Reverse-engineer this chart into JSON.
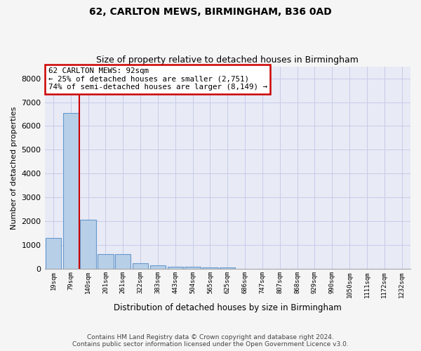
{
  "title1": "62, CARLTON MEWS, BIRMINGHAM, B36 0AD",
  "title2": "Size of property relative to detached houses in Birmingham",
  "xlabel": "Distribution of detached houses by size in Birmingham",
  "ylabel": "Number of detached properties",
  "categories": [
    "19sqm",
    "79sqm",
    "140sqm",
    "201sqm",
    "261sqm",
    "322sqm",
    "383sqm",
    "443sqm",
    "504sqm",
    "565sqm",
    "625sqm",
    "686sqm",
    "747sqm",
    "807sqm",
    "868sqm",
    "929sqm",
    "990sqm",
    "1050sqm",
    "1111sqm",
    "1172sqm",
    "1232sqm"
  ],
  "bar_heights": [
    1300,
    6550,
    2060,
    640,
    640,
    250,
    160,
    100,
    100,
    70,
    70,
    0,
    0,
    0,
    0,
    0,
    0,
    0,
    0,
    0,
    0
  ],
  "bar_color": "#b8cfe8",
  "bar_edge_color": "#6699cc",
  "ylim": [
    0,
    8500
  ],
  "yticks": [
    0,
    1000,
    2000,
    3000,
    4000,
    5000,
    6000,
    7000,
    8000
  ],
  "property_line_x": 1.5,
  "property_sqm": 92,
  "annotation_text_line1": "62 CARLTON MEWS: 92sqm",
  "annotation_text_line2": "← 25% of detached houses are smaller (2,751)",
  "annotation_text_line3": "74% of semi-detached houses are larger (8,149) →",
  "annotation_box_color": "#ffffff",
  "annotation_box_edge_color": "#cc0000",
  "property_line_color": "#cc0000",
  "grid_color": "#c8cce8",
  "bg_color": "#e8eaf6",
  "fig_bg_color": "#f5f5f5",
  "footer_line1": "Contains HM Land Registry data © Crown copyright and database right 2024.",
  "footer_line2": "Contains public sector information licensed under the Open Government Licence v3.0."
}
